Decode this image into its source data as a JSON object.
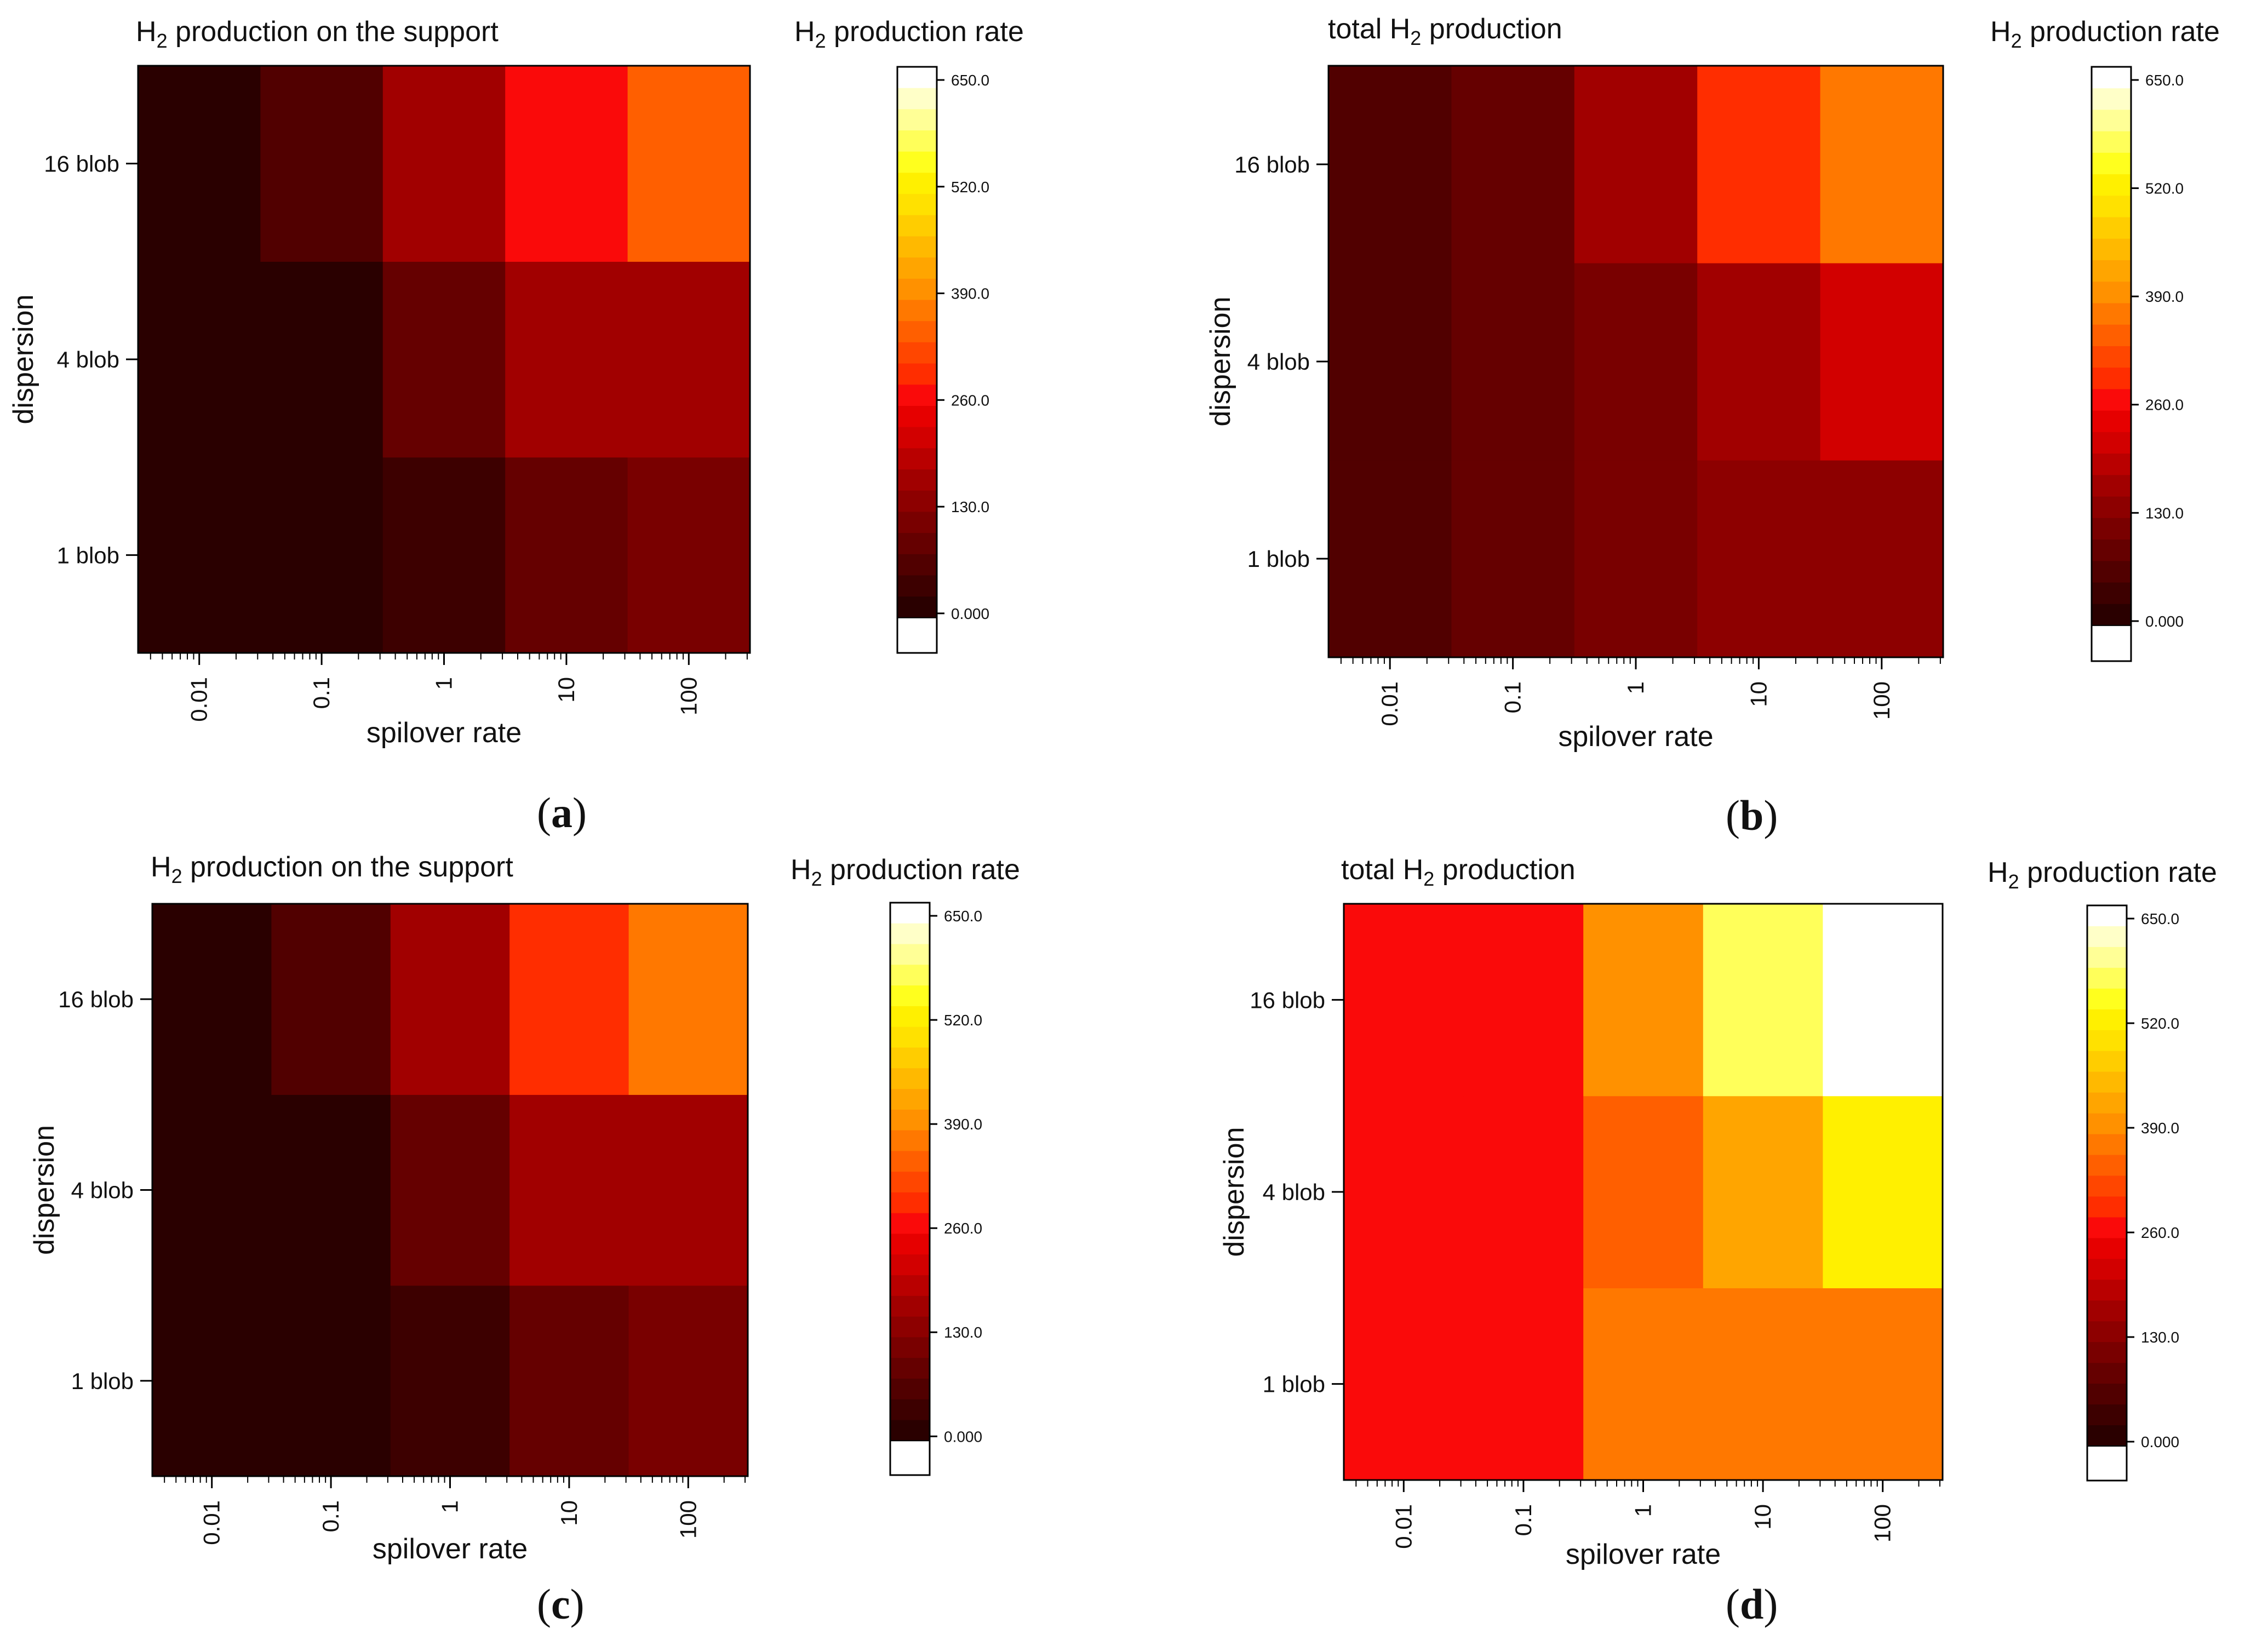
{
  "chart_data": [
    {
      "panel": "a",
      "type": "heatmap",
      "title": "production on the support",
      "title_symbol": "H",
      "title_sub": "2",
      "title_prefix": "",
      "xlabel": "spilover rate",
      "ylabel": "dispersion",
      "x_categories": [
        "0.01",
        "0.1",
        "1",
        "10",
        "100"
      ],
      "y_categories": [
        "1 blob",
        "4 blob",
        "16 blob"
      ],
      "values": [
        [
          5,
          5,
          30,
          90,
          120
        ],
        [
          5,
          5,
          90,
          160,
          160
        ],
        [
          5,
          50,
          150,
          270,
          340
        ]
      ],
      "colorbar": {
        "title_symbol": "H",
        "title_sub": "2",
        "title_rest": "production rate",
        "min": 0,
        "max": 650,
        "ticks": [
          "0.000",
          "130.0",
          "260.0",
          "390.0",
          "520.0",
          "650.0"
        ]
      }
    },
    {
      "panel": "b",
      "type": "heatmap",
      "title": "production",
      "title_symbol": "H",
      "title_sub": "2",
      "title_prefix": "total",
      "xlabel": "spilover rate",
      "ylabel": "dispersion",
      "x_categories": [
        "0.01",
        "0.1",
        "1",
        "10",
        "100"
      ],
      "y_categories": [
        "1 blob",
        "4 blob",
        "16 blob"
      ],
      "values": [
        [
          50,
          90,
          110,
          130,
          130
        ],
        [
          50,
          90,
          120,
          170,
          200
        ],
        [
          50,
          90,
          170,
          280,
          350
        ]
      ],
      "colorbar": {
        "title_symbol": "H",
        "title_sub": "2",
        "title_rest": "production rate",
        "min": 0,
        "max": 650,
        "ticks": [
          "0.000",
          "130.0",
          "260.0",
          "390.0",
          "520.0",
          "650.0"
        ]
      }
    },
    {
      "panel": "c",
      "type": "heatmap",
      "title": "production on the support",
      "title_symbol": "H",
      "title_sub": "2",
      "title_prefix": "",
      "xlabel": "spilover rate",
      "ylabel": "dispersion",
      "x_categories": [
        "0.01",
        "0.1",
        "1",
        "10",
        "100"
      ],
      "y_categories": [
        "1 blob",
        "4 blob",
        "16 blob"
      ],
      "values": [
        [
          5,
          5,
          30,
          90,
          110
        ],
        [
          5,
          5,
          90,
          160,
          160
        ],
        [
          5,
          50,
          160,
          280,
          350
        ]
      ],
      "colorbar": {
        "title_symbol": "H",
        "title_sub": "2",
        "title_rest": "production rate",
        "min": 0,
        "max": 650,
        "ticks": [
          "0.000",
          "130.0",
          "260.0",
          "390.0",
          "520.0",
          "650.0"
        ]
      }
    },
    {
      "panel": "d",
      "type": "heatmap",
      "title": "production",
      "title_symbol": "H",
      "title_sub": "2",
      "title_prefix": "total",
      "xlabel": "spilover rate",
      "ylabel": "dispersion",
      "x_categories": [
        "0.01",
        "0.1",
        "1",
        "10",
        "100"
      ],
      "y_categories": [
        "1 blob",
        "4 blob",
        "16 blob"
      ],
      "values": [
        [
          250,
          270,
          350,
          350,
          350
        ],
        [
          250,
          270,
          330,
          420,
          510
        ],
        [
          250,
          270,
          390,
          570,
          650
        ]
      ],
      "colorbar": {
        "title_symbol": "H",
        "title_sub": "2",
        "title_rest": "production rate",
        "min": 0,
        "max": 650,
        "ticks": [
          "0.000",
          "130.0",
          "260.0",
          "390.0",
          "520.0",
          "650.0"
        ]
      }
    }
  ]
}
